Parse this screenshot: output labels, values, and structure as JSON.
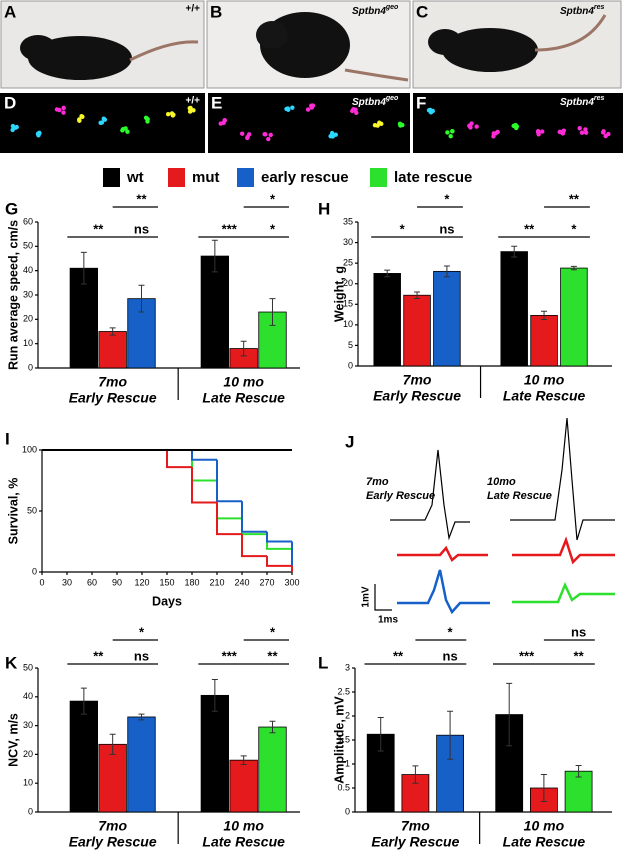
{
  "photos": [
    {
      "letter": "A",
      "label": "+/+"
    },
    {
      "letter": "B",
      "label": "Sptbn4",
      "sup": "geo"
    },
    {
      "letter": "C",
      "label": "Sptbn4",
      "sup": "res"
    }
  ],
  "footprints": [
    {
      "letter": "D",
      "label": "+/+"
    },
    {
      "letter": "E",
      "label": "Sptbn4",
      "sup": "geo"
    },
    {
      "letter": "F",
      "label": "Sptbn4",
      "sup": "res"
    }
  ],
  "legend": [
    {
      "name": "wt",
      "color": "#000000"
    },
    {
      "name": "mut",
      "color": "#e41a1c"
    },
    {
      "name": "early rescue",
      "color": "#1660c8"
    },
    {
      "name": "late rescue",
      "color": "#2ee02e"
    }
  ],
  "traces": {
    "letter": "J",
    "left": [
      "7mo",
      "Early Rescue"
    ],
    "right": [
      "10mo",
      "Late Rescue"
    ],
    "scale_y": "1mV",
    "scale_x": "1ms"
  },
  "chart_data": [
    {
      "type": "bar",
      "letter": "G",
      "ylabel": "Run average speed, cm/s",
      "ylim": [
        0,
        60
      ],
      "yticks": [
        0,
        10,
        20,
        30,
        40,
        50,
        60
      ],
      "groups": [
        {
          "title": "7mo",
          "subtitle": "Early Rescue",
          "values": [
            41,
            15,
            28.5
          ],
          "errors": [
            6.5,
            1.5,
            5.5
          ],
          "colors": [
            "#000000",
            "#e41a1c",
            "#1660c8"
          ],
          "sig": {
            "upper": "**",
            "lower": [
              "**",
              "ns"
            ]
          }
        },
        {
          "title": "10 mo",
          "subtitle": "Late Rescue",
          "values": [
            46,
            8,
            23
          ],
          "errors": [
            6.5,
            3,
            5.5
          ],
          "colors": [
            "#000000",
            "#e41a1c",
            "#2ee02e"
          ],
          "sig": {
            "upper": "*",
            "lower": [
              "***",
              "*"
            ]
          }
        }
      ]
    },
    {
      "type": "bar",
      "letter": "H",
      "ylabel": "Weight, g",
      "ylim": [
        0,
        35
      ],
      "yticks": [
        0,
        5,
        10,
        15,
        20,
        25,
        30,
        35
      ],
      "groups": [
        {
          "title": "7mo",
          "subtitle": "Early Rescue",
          "values": [
            22.5,
            17.2,
            23
          ],
          "errors": [
            0.8,
            0.8,
            1.3
          ],
          "colors": [
            "#000000",
            "#e41a1c",
            "#1660c8"
          ],
          "sig": {
            "upper": "*",
            "lower": [
              "*",
              "ns"
            ]
          }
        },
        {
          "title": "10 mo",
          "subtitle": "Late Rescue",
          "values": [
            27.8,
            12.3,
            23.8
          ],
          "errors": [
            1.3,
            1,
            0.4
          ],
          "colors": [
            "#000000",
            "#e41a1c",
            "#2ee02e"
          ],
          "sig": {
            "upper": "**",
            "lower": [
              "**",
              "*"
            ]
          }
        }
      ]
    },
    {
      "type": "line",
      "step": "post",
      "letter": "I",
      "ylabel": "Survival, %",
      "xlabel": "Days",
      "xlim": [
        0,
        300
      ],
      "xticks": [
        0,
        30,
        60,
        90,
        120,
        150,
        180,
        210,
        240,
        270,
        300
      ],
      "ylim": [
        0,
        100
      ],
      "yticks": [
        0,
        50,
        100
      ],
      "x": [
        0,
        150,
        180,
        210,
        240,
        270,
        300
      ],
      "series": [
        {
          "name": "wt",
          "color": "#000000",
          "values": [
            100,
            100,
            100,
            100,
            100,
            100,
            100
          ]
        },
        {
          "name": "mut",
          "color": "#e41a1c",
          "values": [
            100,
            86,
            57,
            31,
            13,
            5,
            0
          ]
        },
        {
          "name": "early rescue",
          "color": "#1660c8",
          "values": [
            100,
            100,
            92,
            58,
            33,
            25,
            0
          ]
        },
        {
          "name": "late rescue",
          "color": "#2ee02e",
          "values": [
            100,
            100,
            75,
            44,
            31,
            19,
            0
          ]
        }
      ]
    },
    {
      "type": "bar",
      "letter": "K",
      "ylabel": "NCV, m/s",
      "ylim": [
        0,
        50
      ],
      "yticks": [
        0,
        10,
        20,
        30,
        40,
        50
      ],
      "groups": [
        {
          "title": "7mo",
          "subtitle": "Early Rescue",
          "values": [
            38.5,
            23.5,
            33
          ],
          "errors": [
            4.5,
            3.5,
            1
          ],
          "colors": [
            "#000000",
            "#e41a1c",
            "#1660c8"
          ],
          "sig": {
            "upper": "*",
            "lower": [
              "**",
              "ns"
            ]
          }
        },
        {
          "title": "10 mo",
          "subtitle": "Late Rescue",
          "values": [
            40.5,
            18,
            29.5
          ],
          "errors": [
            5.5,
            1.5,
            2
          ],
          "colors": [
            "#000000",
            "#e41a1c",
            "#2ee02e"
          ],
          "sig": {
            "upper": "*",
            "lower": [
              "***",
              "**"
            ]
          }
        }
      ]
    },
    {
      "type": "bar",
      "letter": "L",
      "ylabel": "Amplitude, mV",
      "ylim": [
        0,
        3
      ],
      "yticks": [
        0,
        0.5,
        1,
        1.5,
        2,
        2.5,
        3
      ],
      "groups": [
        {
          "title": "7mo",
          "subtitle": "Early Rescue",
          "values": [
            1.62,
            0.78,
            1.6
          ],
          "errors": [
            0.35,
            0.18,
            0.5
          ],
          "colors": [
            "#000000",
            "#e41a1c",
            "#1660c8"
          ],
          "sig": {
            "upper": "*",
            "lower": [
              "**",
              "ns"
            ]
          }
        },
        {
          "title": "10 mo",
          "subtitle": "Late Rescue",
          "values": [
            2.03,
            0.5,
            0.85
          ],
          "errors": [
            0.65,
            0.28,
            0.12
          ],
          "colors": [
            "#000000",
            "#e41a1c",
            "#2ee02e"
          ],
          "sig": {
            "upper": "ns",
            "lower": [
              "***",
              "**"
            ]
          }
        }
      ]
    }
  ]
}
